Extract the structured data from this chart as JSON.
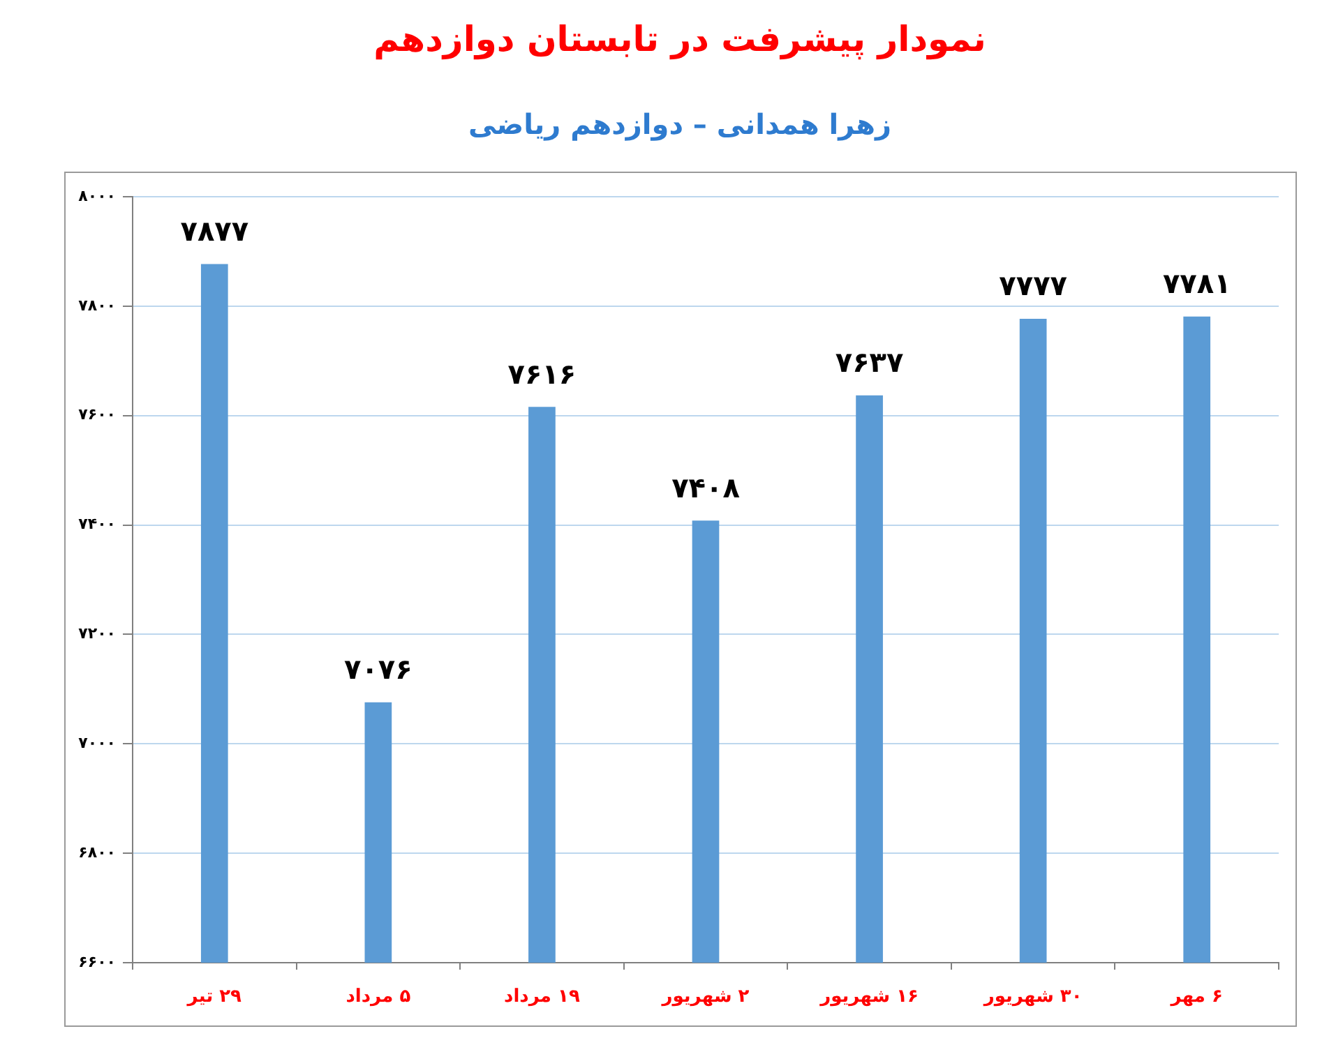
{
  "chart_data": {
    "type": "bar",
    "title": "نمودار پیشرفت در تابستان دوازدهم",
    "subtitle": "زهرا همدانی – دوازدهم ریاضی",
    "categories": [
      "۲۹ تیر",
      "۵ مرداد",
      "۱۹ مرداد",
      "۲ شهریور",
      "۱۶ شهریور",
      "۳۰ شهریور",
      "۶ مهر"
    ],
    "values": [
      7877,
      7076,
      7616,
      7408,
      7637,
      7777,
      7781
    ],
    "value_labels": [
      "۷۸۷۷",
      "۷۰۷۶",
      "۷۶۱۶",
      "۷۴۰۸",
      "۷۶۳۷",
      "۷۷۷۷",
      "۷۷۸۱"
    ],
    "color": "#5b9bd5",
    "ylim": [
      6600,
      8000
    ],
    "yticks": [
      {
        "value": 6600,
        "label": "۶۶۰۰"
      },
      {
        "value": 6800,
        "label": "۶۸۰۰"
      },
      {
        "value": 7000,
        "label": "۷۰۰۰"
      },
      {
        "value": 7200,
        "label": "۷۲۰۰"
      },
      {
        "value": 7400,
        "label": "۷۴۰۰"
      },
      {
        "value": 7600,
        "label": "۷۶۰۰"
      },
      {
        "value": 7800,
        "label": "۷۸۰۰"
      },
      {
        "value": 8000,
        "label": "۸۰۰۰"
      }
    ],
    "grid": "y"
  }
}
